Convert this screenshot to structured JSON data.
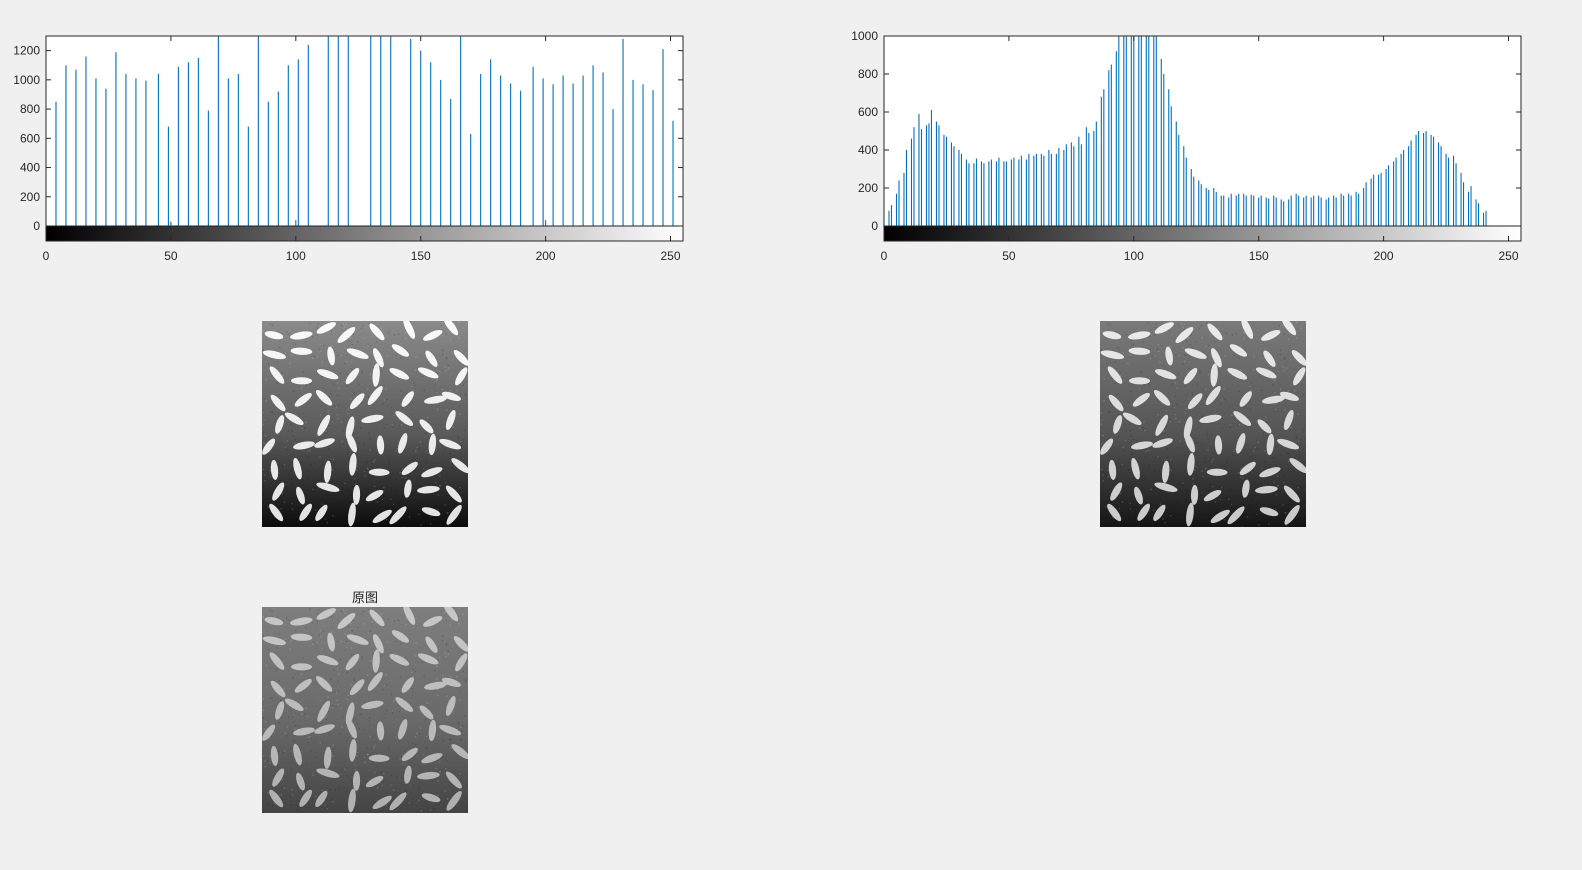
{
  "figure": {
    "background": "#f0f0f0",
    "stem_color": "#0072bd",
    "image_title_bottom": "原图"
  },
  "chart_data": [
    {
      "type": "bar",
      "name": "equalized-histogram",
      "xlim": [
        0,
        255
      ],
      "ylim": [
        -100,
        1300
      ],
      "xticks": [
        0,
        50,
        100,
        150,
        200,
        250
      ],
      "yticks": [
        0,
        200,
        400,
        600,
        800,
        1000,
        1200
      ],
      "colorbar": "grayscale 0-255",
      "stems": [
        {
          "x": 4,
          "y": 850
        },
        {
          "x": 8,
          "y": 1100
        },
        {
          "x": 12,
          "y": 1070
        },
        {
          "x": 16,
          "y": 1160
        },
        {
          "x": 20,
          "y": 1010
        },
        {
          "x": 24,
          "y": 940
        },
        {
          "x": 28,
          "y": 1190
        },
        {
          "x": 32,
          "y": 1040
        },
        {
          "x": 36,
          "y": 1010
        },
        {
          "x": 40,
          "y": 995
        },
        {
          "x": 45,
          "y": 1040
        },
        {
          "x": 49,
          "y": 680
        },
        {
          "x": 50,
          "y": 30
        },
        {
          "x": 53,
          "y": 1090
        },
        {
          "x": 57,
          "y": 1120
        },
        {
          "x": 61,
          "y": 1150
        },
        {
          "x": 65,
          "y": 790
        },
        {
          "x": 69,
          "y": 1300
        },
        {
          "x": 73,
          "y": 1010
        },
        {
          "x": 77,
          "y": 1040
        },
        {
          "x": 81,
          "y": 680
        },
        {
          "x": 85,
          "y": 1300
        },
        {
          "x": 89,
          "y": 850
        },
        {
          "x": 93,
          "y": 920
        },
        {
          "x": 97,
          "y": 1100
        },
        {
          "x": 100,
          "y": 40
        },
        {
          "x": 101,
          "y": 1140
        },
        {
          "x": 105,
          "y": 1240
        },
        {
          "x": 113,
          "y": 1300
        },
        {
          "x": 117,
          "y": 1300
        },
        {
          "x": 121,
          "y": 1300
        },
        {
          "x": 130,
          "y": 1300
        },
        {
          "x": 134,
          "y": 1300
        },
        {
          "x": 138,
          "y": 1300
        },
        {
          "x": 146,
          "y": 1280
        },
        {
          "x": 150,
          "y": 1200
        },
        {
          "x": 154,
          "y": 1120
        },
        {
          "x": 158,
          "y": 1000
        },
        {
          "x": 162,
          "y": 870
        },
        {
          "x": 166,
          "y": 1300
        },
        {
          "x": 170,
          "y": 630
        },
        {
          "x": 174,
          "y": 1040
        },
        {
          "x": 178,
          "y": 1140
        },
        {
          "x": 182,
          "y": 1030
        },
        {
          "x": 186,
          "y": 975
        },
        {
          "x": 190,
          "y": 925
        },
        {
          "x": 195,
          "y": 1090
        },
        {
          "x": 199,
          "y": 1010
        },
        {
          "x": 200,
          "y": 40
        },
        {
          "x": 203,
          "y": 970
        },
        {
          "x": 207,
          "y": 1030
        },
        {
          "x": 211,
          "y": 975
        },
        {
          "x": 215,
          "y": 1030
        },
        {
          "x": 219,
          "y": 1100
        },
        {
          "x": 223,
          "y": 1050
        },
        {
          "x": 227,
          "y": 800
        },
        {
          "x": 231,
          "y": 1280
        },
        {
          "x": 235,
          "y": 1000
        },
        {
          "x": 239,
          "y": 970
        },
        {
          "x": 243,
          "y": 930
        },
        {
          "x": 247,
          "y": 1210
        },
        {
          "x": 251,
          "y": 720
        }
      ]
    },
    {
      "type": "bar",
      "name": "original-histogram",
      "xlim": [
        0,
        255
      ],
      "ylim": [
        -80,
        1000
      ],
      "xticks": [
        0,
        50,
        100,
        150,
        200,
        250
      ],
      "yticks": [
        0,
        200,
        400,
        600,
        800,
        1000
      ],
      "colorbar": "grayscale 0-255",
      "stems": [
        {
          "x": 2,
          "y": 80
        },
        {
          "x": 3,
          "y": 110
        },
        {
          "x": 5,
          "y": 170
        },
        {
          "x": 6,
          "y": 240
        },
        {
          "x": 8,
          "y": 280
        },
        {
          "x": 9,
          "y": 400
        },
        {
          "x": 11,
          "y": 460
        },
        {
          "x": 12,
          "y": 520
        },
        {
          "x": 14,
          "y": 590
        },
        {
          "x": 15,
          "y": 510
        },
        {
          "x": 17,
          "y": 530
        },
        {
          "x": 18,
          "y": 540
        },
        {
          "x": 19,
          "y": 610
        },
        {
          "x": 21,
          "y": 550
        },
        {
          "x": 22,
          "y": 530
        },
        {
          "x": 24,
          "y": 480
        },
        {
          "x": 25,
          "y": 470
        },
        {
          "x": 27,
          "y": 440
        },
        {
          "x": 28,
          "y": 420
        },
        {
          "x": 30,
          "y": 400
        },
        {
          "x": 31,
          "y": 380
        },
        {
          "x": 33,
          "y": 350
        },
        {
          "x": 34,
          "y": 330
        },
        {
          "x": 36,
          "y": 330
        },
        {
          "x": 37,
          "y": 355
        },
        {
          "x": 39,
          "y": 340
        },
        {
          "x": 40,
          "y": 330
        },
        {
          "x": 42,
          "y": 340
        },
        {
          "x": 43,
          "y": 350
        },
        {
          "x": 45,
          "y": 340
        },
        {
          "x": 46,
          "y": 360
        },
        {
          "x": 48,
          "y": 340
        },
        {
          "x": 49,
          "y": 340
        },
        {
          "x": 51,
          "y": 350
        },
        {
          "x": 52,
          "y": 360
        },
        {
          "x": 54,
          "y": 350
        },
        {
          "x": 55,
          "y": 370
        },
        {
          "x": 57,
          "y": 350
        },
        {
          "x": 58,
          "y": 380
        },
        {
          "x": 60,
          "y": 370
        },
        {
          "x": 61,
          "y": 380
        },
        {
          "x": 63,
          "y": 380
        },
        {
          "x": 64,
          "y": 370
        },
        {
          "x": 66,
          "y": 400
        },
        {
          "x": 67,
          "y": 380
        },
        {
          "x": 69,
          "y": 380
        },
        {
          "x": 70,
          "y": 410
        },
        {
          "x": 72,
          "y": 400
        },
        {
          "x": 73,
          "y": 430
        },
        {
          "x": 75,
          "y": 440
        },
        {
          "x": 76,
          "y": 420
        },
        {
          "x": 78,
          "y": 470
        },
        {
          "x": 79,
          "y": 430
        },
        {
          "x": 81,
          "y": 520
        },
        {
          "x": 82,
          "y": 490
        },
        {
          "x": 84,
          "y": 500
        },
        {
          "x": 85,
          "y": 550
        },
        {
          "x": 87,
          "y": 680
        },
        {
          "x": 88,
          "y": 720
        },
        {
          "x": 90,
          "y": 820
        },
        {
          "x": 91,
          "y": 850
        },
        {
          "x": 93,
          "y": 920
        },
        {
          "x": 94,
          "y": 1000
        },
        {
          "x": 96,
          "y": 1000
        },
        {
          "x": 97,
          "y": 1000
        },
        {
          "x": 99,
          "y": 1000
        },
        {
          "x": 100,
          "y": 1000
        },
        {
          "x": 102,
          "y": 1000
        },
        {
          "x": 103,
          "y": 1000
        },
        {
          "x": 105,
          "y": 1000
        },
        {
          "x": 106,
          "y": 1000
        },
        {
          "x": 108,
          "y": 1000
        },
        {
          "x": 109,
          "y": 1000
        },
        {
          "x": 111,
          "y": 880
        },
        {
          "x": 112,
          "y": 800
        },
        {
          "x": 114,
          "y": 720
        },
        {
          "x": 115,
          "y": 630
        },
        {
          "x": 117,
          "y": 550
        },
        {
          "x": 118,
          "y": 480
        },
        {
          "x": 120,
          "y": 420
        },
        {
          "x": 121,
          "y": 360
        },
        {
          "x": 123,
          "y": 300
        },
        {
          "x": 124,
          "y": 260
        },
        {
          "x": 126,
          "y": 240
        },
        {
          "x": 127,
          "y": 220
        },
        {
          "x": 129,
          "y": 200
        },
        {
          "x": 130,
          "y": 190
        },
        {
          "x": 132,
          "y": 200
        },
        {
          "x": 133,
          "y": 180
        },
        {
          "x": 135,
          "y": 160
        },
        {
          "x": 136,
          "y": 160
        },
        {
          "x": 138,
          "y": 150
        },
        {
          "x": 139,
          "y": 170
        },
        {
          "x": 141,
          "y": 160
        },
        {
          "x": 142,
          "y": 170
        },
        {
          "x": 144,
          "y": 170
        },
        {
          "x": 145,
          "y": 160
        },
        {
          "x": 147,
          "y": 165
        },
        {
          "x": 148,
          "y": 160
        },
        {
          "x": 150,
          "y": 150
        },
        {
          "x": 151,
          "y": 160
        },
        {
          "x": 153,
          "y": 150
        },
        {
          "x": 154,
          "y": 145
        },
        {
          "x": 156,
          "y": 160
        },
        {
          "x": 157,
          "y": 150
        },
        {
          "x": 159,
          "y": 140
        },
        {
          "x": 160,
          "y": 130
        },
        {
          "x": 162,
          "y": 140
        },
        {
          "x": 163,
          "y": 160
        },
        {
          "x": 165,
          "y": 170
        },
        {
          "x": 166,
          "y": 160
        },
        {
          "x": 168,
          "y": 150
        },
        {
          "x": 169,
          "y": 160
        },
        {
          "x": 171,
          "y": 150
        },
        {
          "x": 172,
          "y": 160
        },
        {
          "x": 174,
          "y": 160
        },
        {
          "x": 175,
          "y": 150
        },
        {
          "x": 177,
          "y": 140
        },
        {
          "x": 178,
          "y": 150
        },
        {
          "x": 180,
          "y": 160
        },
        {
          "x": 181,
          "y": 150
        },
        {
          "x": 183,
          "y": 170
        },
        {
          "x": 184,
          "y": 160
        },
        {
          "x": 186,
          "y": 170
        },
        {
          "x": 187,
          "y": 160
        },
        {
          "x": 189,
          "y": 180
        },
        {
          "x": 190,
          "y": 170
        },
        {
          "x": 192,
          "y": 200
        },
        {
          "x": 193,
          "y": 230
        },
        {
          "x": 195,
          "y": 250
        },
        {
          "x": 196,
          "y": 270
        },
        {
          "x": 198,
          "y": 270
        },
        {
          "x": 199,
          "y": 280
        },
        {
          "x": 201,
          "y": 300
        },
        {
          "x": 202,
          "y": 320
        },
        {
          "x": 204,
          "y": 340
        },
        {
          "x": 205,
          "y": 360
        },
        {
          "x": 207,
          "y": 380
        },
        {
          "x": 208,
          "y": 400
        },
        {
          "x": 210,
          "y": 420
        },
        {
          "x": 211,
          "y": 450
        },
        {
          "x": 213,
          "y": 480
        },
        {
          "x": 214,
          "y": 500
        },
        {
          "x": 216,
          "y": 490
        },
        {
          "x": 217,
          "y": 500
        },
        {
          "x": 219,
          "y": 480
        },
        {
          "x": 220,
          "y": 470
        },
        {
          "x": 222,
          "y": 440
        },
        {
          "x": 223,
          "y": 420
        },
        {
          "x": 225,
          "y": 380
        },
        {
          "x": 226,
          "y": 360
        },
        {
          "x": 228,
          "y": 370
        },
        {
          "x": 229,
          "y": 330
        },
        {
          "x": 231,
          "y": 280
        },
        {
          "x": 232,
          "y": 230
        },
        {
          "x": 234,
          "y": 180
        },
        {
          "x": 235,
          "y": 210
        },
        {
          "x": 237,
          "y": 140
        },
        {
          "x": 238,
          "y": 120
        },
        {
          "x": 240,
          "y": 70
        },
        {
          "x": 241,
          "y": 80
        }
      ]
    }
  ]
}
